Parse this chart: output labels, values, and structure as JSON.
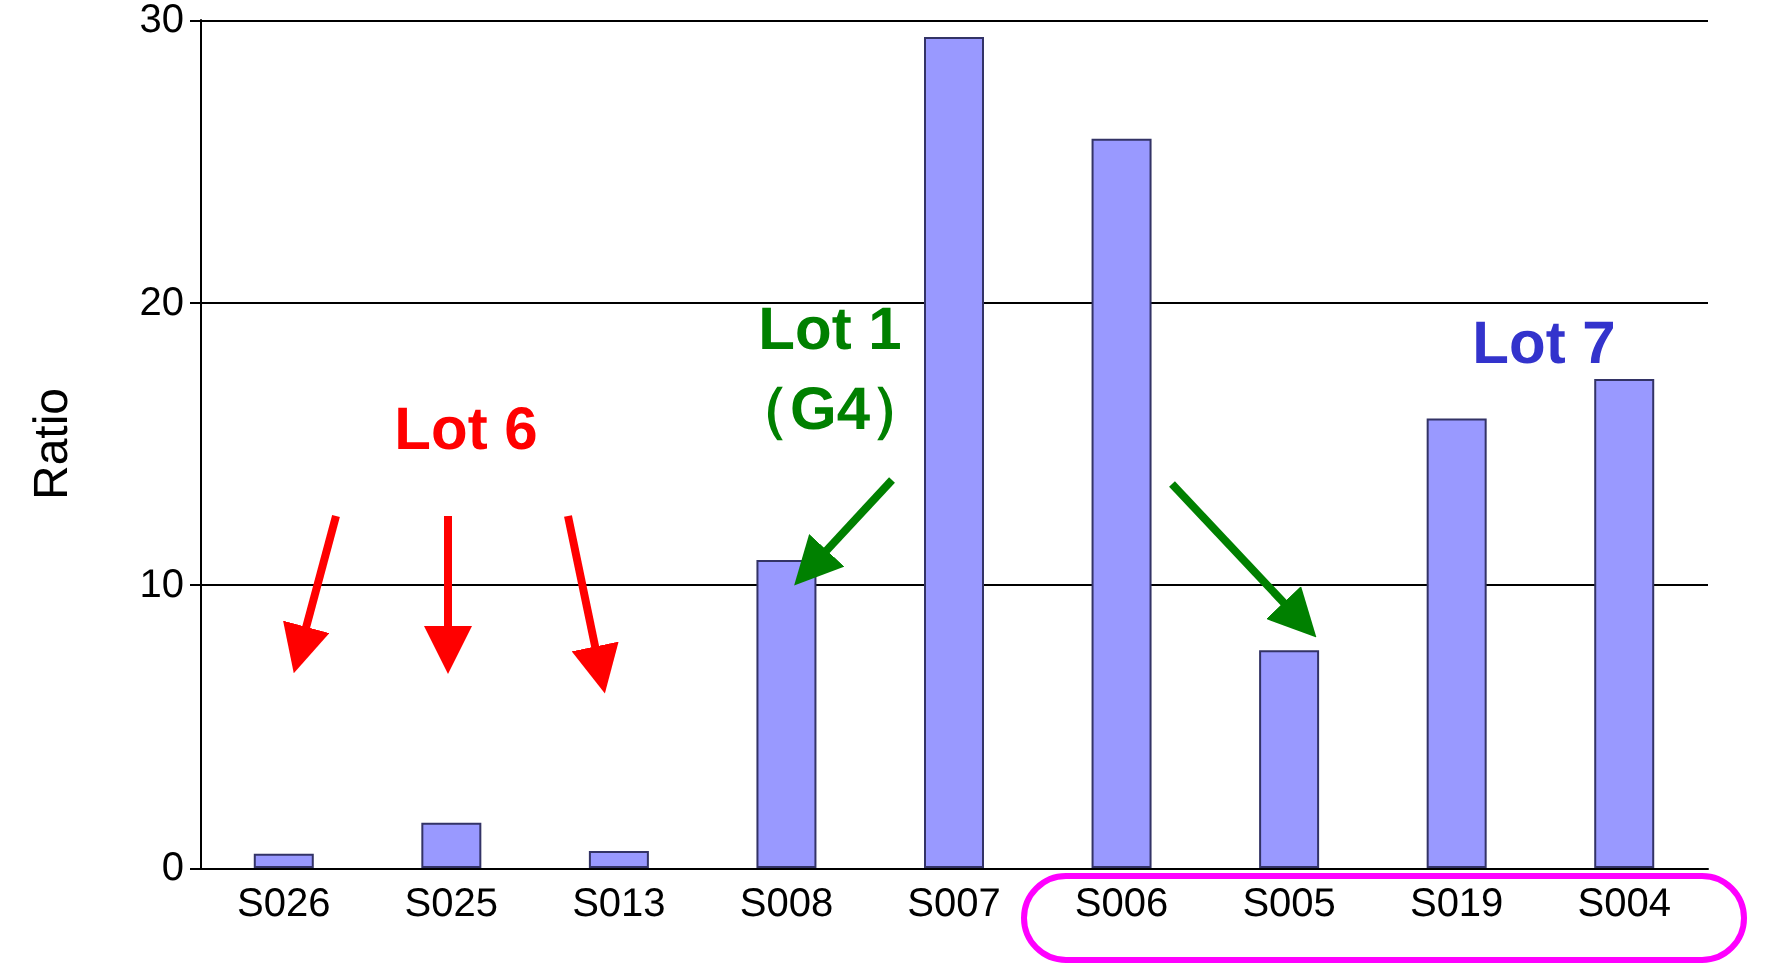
{
  "chart_data": {
    "type": "bar",
    "ylabel": "Ratio",
    "categories": [
      "S026",
      "S025",
      "S013",
      "S008",
      "S007",
      "S006",
      "S005",
      "S019",
      "S004"
    ],
    "values": [
      0.5,
      1.6,
      0.6,
      10.9,
      29.4,
      25.8,
      7.7,
      15.9,
      17.3
    ],
    "color": "#9999ff",
    "ylim": [
      0,
      30
    ],
    "yticks": [
      0,
      10,
      20,
      30
    ],
    "grid": "y",
    "annotations": [
      "Lot 6",
      {
        "text": "Lot 1\n（G4）",
        "x": "S008",
        "y": 10.9
      },
      "Lot 7"
    ]
  }
}
